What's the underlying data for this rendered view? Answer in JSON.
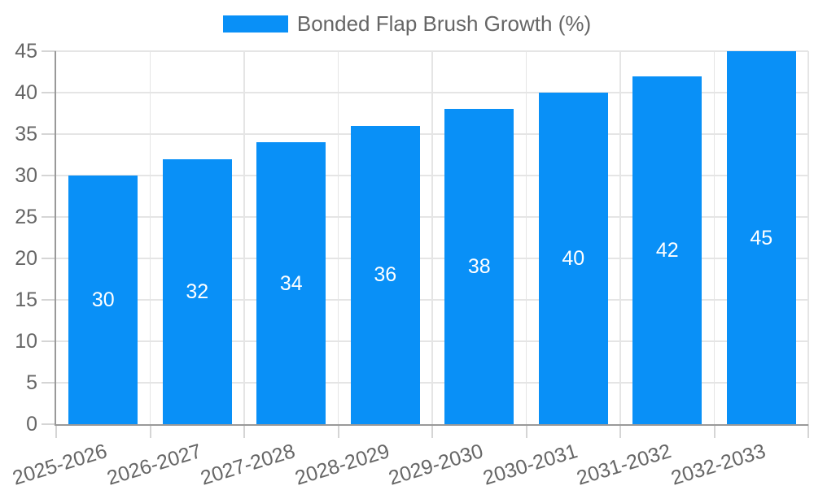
{
  "chart_data": {
    "type": "bar",
    "title": "Bonded Flap Brush Growth (%)",
    "legend_position": "top",
    "categories": [
      "2025-2026",
      "2026-2027",
      "2027-2028",
      "2028-2029",
      "2029-2030",
      "2030-2031",
      "2031-2032",
      "2032-2033"
    ],
    "values": [
      30,
      32,
      34,
      36,
      38,
      40,
      42,
      45
    ],
    "value_labels_shown": true,
    "xlabel": "",
    "ylabel": "",
    "ylim": [
      0,
      45
    ],
    "yticks": [
      0,
      5,
      10,
      15,
      20,
      25,
      30,
      35,
      40,
      45
    ],
    "grid": true,
    "x_label_rotation_deg": -17,
    "colors": {
      "bar": "#0990f7",
      "grid": "#e5e5e5",
      "axis": "#999999",
      "tick_mark": "#d5d5d5",
      "text": "#666666",
      "value_label": "#ffffff",
      "background": "#ffffff"
    }
  }
}
